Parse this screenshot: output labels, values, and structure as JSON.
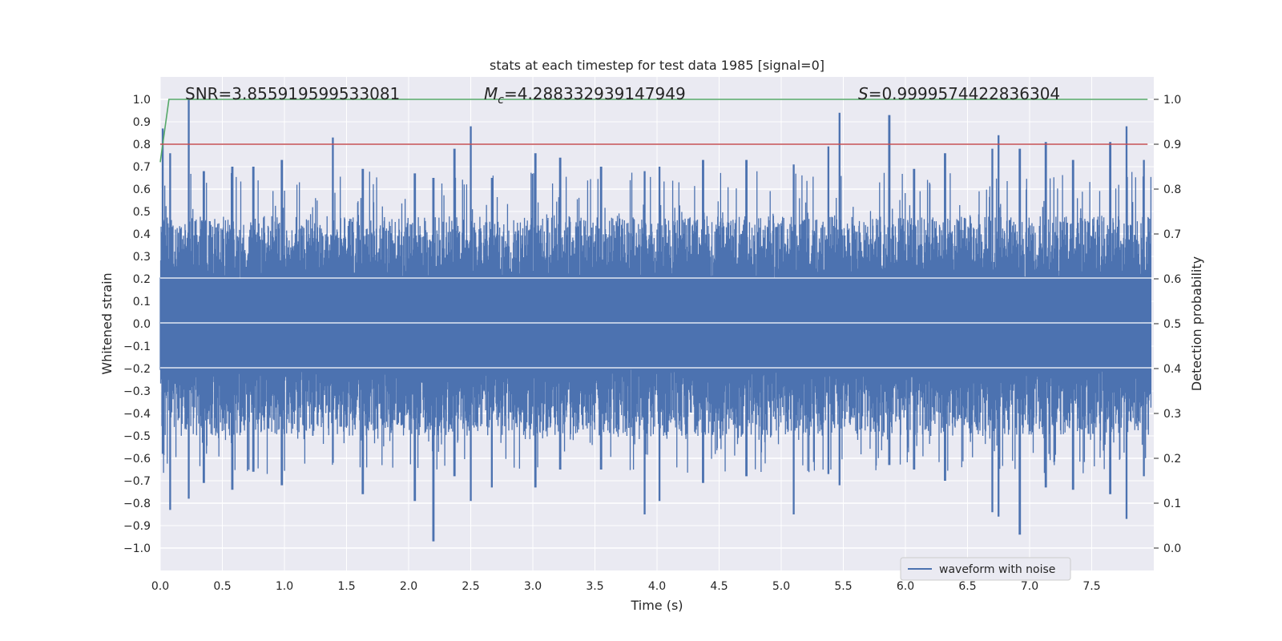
{
  "chart_data": {
    "type": "line",
    "title": "stats at each timestep for test data 1985 [signal=0]",
    "xlabel": "Time (s)",
    "ylabel": "Whitened strain",
    "y2label": "Detection probability",
    "xlim": [
      0.0,
      8.0
    ],
    "ylim": [
      -1.1,
      1.1
    ],
    "y2lim": [
      -0.05,
      1.05
    ],
    "x_ticks": [
      "0.0",
      "0.5",
      "1.0",
      "1.5",
      "2.0",
      "2.5",
      "3.0",
      "3.5",
      "4.0",
      "4.5",
      "5.0",
      "5.5",
      "6.0",
      "6.5",
      "7.0",
      "7.5"
    ],
    "y_ticks": [
      "1.0",
      "0.9",
      "0.8",
      "0.7",
      "0.6",
      "0.5",
      "0.4",
      "0.3",
      "0.2",
      "0.1",
      "0.0",
      "−0.1",
      "−0.2",
      "−0.3",
      "−0.4",
      "−0.5",
      "−0.6",
      "−0.7",
      "−0.8",
      "−0.9",
      "−1.0"
    ],
    "y2_ticks": [
      "1.0",
      "0.9",
      "0.8",
      "0.7",
      "0.6",
      "0.5",
      "0.4",
      "0.3",
      "0.2",
      "0.1",
      "0.0"
    ],
    "annotations": {
      "snr": "SNR=3.855919599533081",
      "mc_symbol": "M",
      "mc_sub": "c",
      "mc_value": "=4.288332939147949",
      "s_symbol": "S",
      "s_value": "=0.9999574422836304"
    },
    "legend": {
      "label": "waveform with noise",
      "location": "lower-right"
    },
    "grid": true,
    "series": [
      {
        "name": "waveform with noise",
        "axis": "left",
        "color": "#4c72b0",
        "envelope_peaks": [
          [
            0.02,
            0.87,
            -0.58
          ],
          [
            0.08,
            0.76,
            -0.83
          ],
          [
            0.23,
            1.0,
            -0.78
          ],
          [
            0.35,
            0.68,
            -0.71
          ],
          [
            0.58,
            0.7,
            -0.74
          ],
          [
            0.75,
            0.7,
            -0.66
          ],
          [
            0.98,
            0.73,
            -0.72
          ],
          [
            1.39,
            0.83,
            -0.62
          ],
          [
            1.63,
            0.69,
            -0.76
          ],
          [
            2.05,
            0.67,
            -0.79
          ],
          [
            2.2,
            0.65,
            -0.97
          ],
          [
            2.37,
            0.78,
            -0.68
          ],
          [
            2.5,
            0.88,
            -0.79
          ],
          [
            2.67,
            0.65,
            -0.73
          ],
          [
            3.02,
            0.76,
            -0.73
          ],
          [
            3.22,
            0.74,
            -0.65
          ],
          [
            3.55,
            0.7,
            -0.65
          ],
          [
            3.9,
            0.68,
            -0.85
          ],
          [
            4.02,
            0.7,
            -0.79
          ],
          [
            4.37,
            0.73,
            -0.71
          ],
          [
            4.72,
            0.73,
            -0.68
          ],
          [
            5.1,
            0.71,
            -0.85
          ],
          [
            5.38,
            0.79,
            -0.67
          ],
          [
            5.47,
            0.94,
            -0.72
          ],
          [
            5.87,
            0.93,
            -0.63
          ],
          [
            6.07,
            0.69,
            -0.65
          ],
          [
            6.32,
            0.76,
            -0.7
          ],
          [
            6.7,
            0.78,
            -0.84
          ],
          [
            6.75,
            0.84,
            -0.86
          ],
          [
            6.92,
            0.78,
            -0.94
          ],
          [
            7.13,
            0.81,
            -0.73
          ],
          [
            7.35,
            0.73,
            -0.74
          ],
          [
            7.65,
            0.81,
            -0.76
          ],
          [
            7.78,
            0.88,
            -0.87
          ],
          [
            7.92,
            0.73,
            -0.68
          ]
        ]
      },
      {
        "name": "",
        "axis": "right",
        "color": "#55a868",
        "x": [
          0.0,
          0.07,
          7.95
        ],
        "y": [
          0.86,
          1.0,
          1.0
        ]
      },
      {
        "name": "",
        "axis": "right",
        "color": "#c44e52",
        "x": [
          0.0,
          7.95
        ],
        "y": [
          0.9,
          0.9
        ]
      }
    ]
  }
}
